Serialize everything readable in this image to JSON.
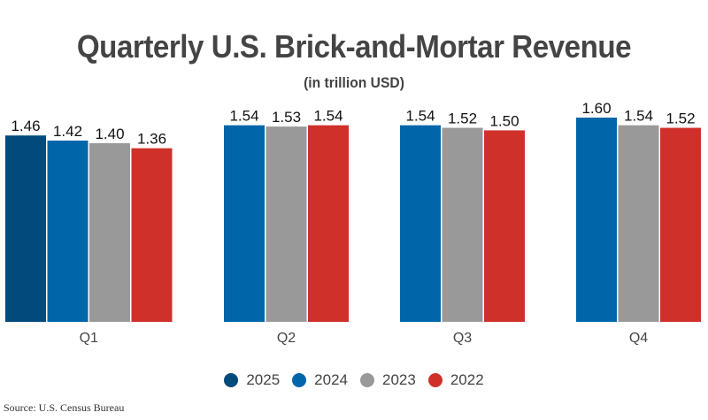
{
  "chart_data": {
    "type": "bar",
    "title": "Quarterly U.S. Brick-and-Mortar Revenue",
    "subtitle": "(in trillion USD)",
    "xlabel": "",
    "ylabel": "",
    "ylim": [
      0,
      1.6
    ],
    "grid": false,
    "legend_position": "bottom-center",
    "categories": [
      "Q1",
      "Q2",
      "Q3",
      "Q4"
    ],
    "series": [
      {
        "name": "2025",
        "color": "#004a7c",
        "values": [
          1.46,
          null,
          null,
          null
        ]
      },
      {
        "name": "2024",
        "color": "#0066aa",
        "values": [
          1.42,
          1.54,
          1.54,
          1.6
        ]
      },
      {
        "name": "2023",
        "color": "#999999",
        "values": [
          1.4,
          1.53,
          1.52,
          1.54
        ]
      },
      {
        "name": "2022",
        "color": "#d0302a",
        "values": [
          1.36,
          1.54,
          1.5,
          1.52
        ]
      }
    ],
    "value_labels": [
      [
        "1.46",
        "1.42",
        "1.40",
        "1.36"
      ],
      [
        "1.54",
        "1.53",
        "1.54"
      ],
      [
        "1.54",
        "1.52",
        "1.50"
      ],
      [
        "1.60",
        "1.54",
        "1.52"
      ]
    ],
    "source": "Source: U.S. Census Bureau"
  }
}
